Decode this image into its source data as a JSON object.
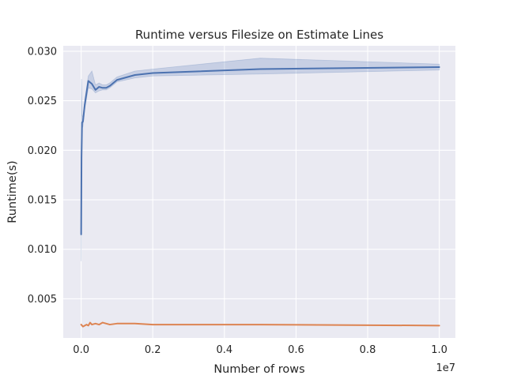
{
  "chart_data": {
    "type": "line",
    "title": "Runtime versus Filesize on Estimate Lines",
    "xlabel": "Number of rows",
    "ylabel": "Runtime(s)",
    "x_offset_label": "1e7",
    "xlim": [
      -500000,
      10450000
    ],
    "ylim": [
      0.00105,
      0.03055
    ],
    "x_ticks": [
      0,
      2000000,
      4000000,
      6000000,
      8000000,
      10000000
    ],
    "x_tick_labels": [
      "0.0",
      "0.2",
      "0.4",
      "0.6",
      "0.8",
      "1.0"
    ],
    "y_ticks": [
      0.005,
      0.01,
      0.015,
      0.02,
      0.025,
      0.03
    ],
    "y_tick_labels": [
      "0.005",
      "0.010",
      "0.015",
      "0.020",
      "0.025",
      "0.030"
    ],
    "grid": true,
    "style": {
      "background": "#eaeaf2",
      "grid_color": "#ffffff"
    },
    "series": [
      {
        "color": "#4c72b0",
        "x": [
          0,
          10000,
          25000,
          50000,
          100000,
          200000,
          300000,
          400000,
          500000,
          600000,
          700000,
          800000,
          1000000,
          1500000,
          2000000,
          5000000,
          10000000
        ],
        "y": [
          0.0115,
          0.0193,
          0.0228,
          0.0229,
          0.0246,
          0.027,
          0.0267,
          0.0261,
          0.0264,
          0.0263,
          0.0263,
          0.0265,
          0.0271,
          0.0276,
          0.0278,
          0.0282,
          0.0284
        ],
        "y_lower": [
          0.0088,
          0.0185,
          0.0222,
          0.0224,
          0.0241,
          0.0263,
          0.0262,
          0.0258,
          0.026,
          0.0261,
          0.0261,
          0.0263,
          0.0269,
          0.0273,
          0.0275,
          0.0277,
          0.0281
        ],
        "y_upper": [
          0.0137,
          0.0272,
          0.0235,
          0.0234,
          0.0251,
          0.0275,
          0.028,
          0.0266,
          0.0268,
          0.0266,
          0.0266,
          0.0268,
          0.0274,
          0.028,
          0.0282,
          0.0293,
          0.0287
        ]
      },
      {
        "color": "#dd8452",
        "x": [
          0,
          50000,
          100000,
          150000,
          200000,
          250000,
          300000,
          400000,
          500000,
          600000,
          700000,
          800000,
          1000000,
          1500000,
          2000000,
          5000000,
          10000000
        ],
        "y": [
          0.0024,
          0.0022,
          0.0023,
          0.0024,
          0.0023,
          0.0026,
          0.0024,
          0.0025,
          0.0024,
          0.0026,
          0.0025,
          0.0024,
          0.0025,
          0.0025,
          0.0024,
          0.0024,
          0.0023
        ]
      }
    ]
  }
}
